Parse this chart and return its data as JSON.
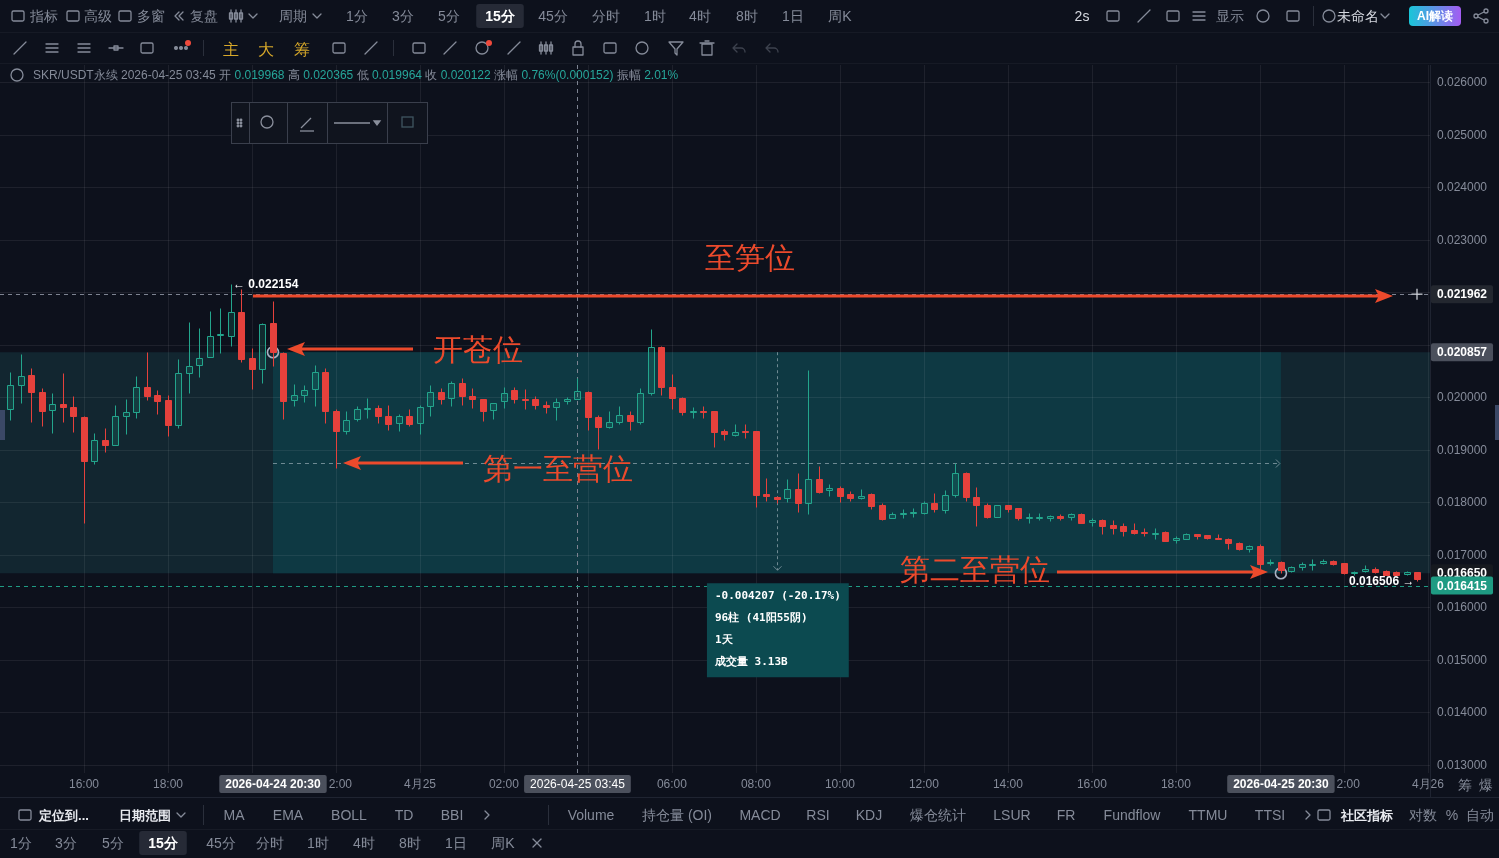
{
  "chart_data": {
    "type": "candlestick",
    "subtitle": "SKR/USDT永续 2026-04-25 03:45 开 0.019968 高 0.020365 低 0.019964 收 0.020122 涨幅 0.76%(0.000152) 振幅 2.01%",
    "x": [
      "2026-04-24T14:15",
      "2026-04-24T14:30",
      "2026-04-24T14:45",
      "2026-04-24T15:00",
      "2026-04-24T15:15",
      "2026-04-24T15:30",
      "2026-04-24T15:45",
      "2026-04-24T16:00",
      "2026-04-24T16:15",
      "2026-04-24T16:30",
      "2026-04-24T16:45",
      "2026-04-24T17:00",
      "2026-04-24T17:15",
      "2026-04-24T17:30",
      "2026-04-24T17:45",
      "2026-04-24T18:00",
      "2026-04-24T18:15",
      "2026-04-24T18:30",
      "2026-04-24T18:45",
      "2026-04-24T19:00",
      "2026-04-24T19:15",
      "2026-04-24T19:30",
      "2026-04-24T19:45",
      "2026-04-24T20:00",
      "2026-04-24T20:15",
      "2026-04-24T20:30",
      "2026-04-24T20:45",
      "2026-04-24T21:00",
      "2026-04-24T21:15",
      "2026-04-24T21:30",
      "2026-04-24T21:45",
      "2026-04-24T22:00",
      "2026-04-24T22:15",
      "2026-04-24T22:30",
      "2026-04-24T22:45",
      "2026-04-24T23:00",
      "2026-04-24T23:15",
      "2026-04-24T23:30",
      "2026-04-24T23:45",
      "2026-04-25T00:00",
      "2026-04-25T00:15",
      "2026-04-25T00:30",
      "2026-04-25T00:45",
      "2026-04-25T01:00",
      "2026-04-25T01:15",
      "2026-04-25T01:30",
      "2026-04-25T01:45",
      "2026-04-25T02:00",
      "2026-04-25T02:15",
      "2026-04-25T02:30",
      "2026-04-25T02:45",
      "2026-04-25T03:00",
      "2026-04-25T03:15",
      "2026-04-25T03:30",
      "2026-04-25T03:45",
      "2026-04-25T04:00",
      "2026-04-25T04:15",
      "2026-04-25T04:30",
      "2026-04-25T04:45",
      "2026-04-25T05:00",
      "2026-04-25T05:15",
      "2026-04-25T05:30",
      "2026-04-25T05:45",
      "2026-04-25T06:00",
      "2026-04-25T06:15",
      "2026-04-25T06:30",
      "2026-04-25T06:45",
      "2026-04-25T07:00",
      "2026-04-25T07:15",
      "2026-04-25T07:30",
      "2026-04-25T07:45",
      "2026-04-25T08:00",
      "2026-04-25T08:15",
      "2026-04-25T08:30",
      "2026-04-25T08:45",
      "2026-04-25T09:00",
      "2026-04-25T09:15",
      "2026-04-25T09:30",
      "2026-04-25T09:45",
      "2026-04-25T10:00",
      "2026-04-25T10:15",
      "2026-04-25T10:30",
      "2026-04-25T10:45",
      "2026-04-25T11:00",
      "2026-04-25T11:15",
      "2026-04-25T11:30",
      "2026-04-25T11:45",
      "2026-04-25T12:00",
      "2026-04-25T12:15",
      "2026-04-25T12:30",
      "2026-04-25T12:45",
      "2026-04-25T13:00",
      "2026-04-25T13:15",
      "2026-04-25T13:30",
      "2026-04-25T13:45",
      "2026-04-25T14:00",
      "2026-04-25T14:15",
      "2026-04-25T14:30",
      "2026-04-25T14:45",
      "2026-04-25T15:00",
      "2026-04-25T15:15",
      "2026-04-25T15:30",
      "2026-04-25T15:45",
      "2026-04-25T16:00",
      "2026-04-25T16:15",
      "2026-04-25T16:30",
      "2026-04-25T16:45",
      "2026-04-25T17:00",
      "2026-04-25T17:15",
      "2026-04-25T17:30",
      "2026-04-25T17:45",
      "2026-04-25T18:00",
      "2026-04-25T18:15",
      "2026-04-25T18:30",
      "2026-04-25T18:45",
      "2026-04-25T19:00",
      "2026-04-25T19:15",
      "2026-04-25T19:30",
      "2026-04-25T19:45",
      "2026-04-25T20:00",
      "2026-04-25T20:15",
      "2026-04-25T20:30",
      "2026-04-25T20:45",
      "2026-04-25T21:00",
      "2026-04-25T21:15",
      "2026-04-25T21:30",
      "2026-04-25T21:45",
      "2026-04-25T22:00",
      "2026-04-25T22:15",
      "2026-04-25T22:30",
      "2026-04-25T22:45",
      "2026-04-25T23:00",
      "2026-04-25T23:15",
      "2026-04-25T23:30",
      "2026-04-25T23:45"
    ],
    "ohlc": [
      [
        0.01977,
        0.02049,
        0.01956,
        0.02023
      ],
      [
        0.02023,
        0.02083,
        0.01989,
        0.0204
      ],
      [
        0.02042,
        0.02055,
        0.01953,
        0.0201
      ],
      [
        0.0201,
        0.02018,
        0.01945,
        0.01973
      ],
      [
        0.01975,
        0.02008,
        0.01932,
        0.01987
      ],
      [
        0.01987,
        0.02046,
        0.01953,
        0.01982
      ],
      [
        0.01982,
        0.02002,
        0.01934,
        0.01964
      ],
      [
        0.01963,
        0.01964,
        0.01761,
        0.01878
      ],
      [
        0.01878,
        0.01932,
        0.01872,
        0.01918
      ],
      [
        0.01919,
        0.01941,
        0.01896,
        0.0191
      ],
      [
        0.0191,
        0.01985,
        0.01909,
        0.01965
      ],
      [
        0.01965,
        0.01997,
        0.01931,
        0.01972
      ],
      [
        0.01972,
        0.02041,
        0.01961,
        0.0202
      ],
      [
        0.0202,
        0.02087,
        0.01994,
        0.02003
      ],
      [
        0.02004,
        0.02013,
        0.01968,
        0.01992
      ],
      [
        0.01994,
        0.02005,
        0.01926,
        0.01948
      ],
      [
        0.01948,
        0.02073,
        0.01942,
        0.02046
      ],
      [
        0.02046,
        0.02144,
        0.02008,
        0.02059
      ],
      [
        0.02061,
        0.02132,
        0.02039,
        0.02074
      ],
      [
        0.02077,
        0.02164,
        0.02076,
        0.02116
      ],
      [
        0.02118,
        0.0217,
        0.02084,
        0.02121
      ],
      [
        0.02117,
        0.022154,
        0.02098,
        0.02162
      ],
      [
        0.02162,
        0.02206,
        0.02068,
        0.02073
      ],
      [
        0.02075,
        0.02094,
        0.02016,
        0.02054
      ],
      [
        0.02054,
        0.02142,
        0.02027,
        0.02139
      ],
      [
        0.02142,
        0.02184,
        0.02059,
        0.020857
      ],
      [
        0.02085,
        0.02086,
        0.01958,
        0.01992
      ],
      [
        0.01994,
        0.02026,
        0.01984,
        0.02004
      ],
      [
        0.02004,
        0.02024,
        0.01991,
        0.02013
      ],
      [
        0.02015,
        0.02061,
        0.01983,
        0.02049
      ],
      [
        0.02049,
        0.02056,
        0.01951,
        0.01973
      ],
      [
        0.01974,
        0.01977,
        0.01866,
        0.01935
      ],
      [
        0.01935,
        0.01973,
        0.01931,
        0.01956
      ],
      [
        0.01958,
        0.01983,
        0.01954,
        0.01978
      ],
      [
        0.01979,
        0.01999,
        0.01961,
        0.0198
      ],
      [
        0.0198,
        0.01986,
        0.01951,
        0.01964
      ],
      [
        0.01965,
        0.01986,
        0.01937,
        0.0195
      ],
      [
        0.01951,
        0.01969,
        0.01935,
        0.01964
      ],
      [
        0.01965,
        0.01977,
        0.01945,
        0.0195
      ],
      [
        0.01951,
        0.01986,
        0.01931,
        0.01982
      ],
      [
        0.01983,
        0.02024,
        0.01965,
        0.0201
      ],
      [
        0.0201,
        0.02018,
        0.01988,
        0.01997
      ],
      [
        0.01998,
        0.0203,
        0.01983,
        0.02027
      ],
      [
        0.02027,
        0.02037,
        0.01986,
        0.02002
      ],
      [
        0.02003,
        0.02018,
        0.0198,
        0.01996
      ],
      [
        0.01996,
        0.01997,
        0.01954,
        0.01973
      ],
      [
        0.01975,
        0.0199,
        0.01959,
        0.01989
      ],
      [
        0.01992,
        0.0202,
        0.0198,
        0.02009
      ],
      [
        0.02013,
        0.0202,
        0.01989,
        0.01997
      ],
      [
        0.01997,
        0.02015,
        0.01978,
        0.01995
      ],
      [
        0.01996,
        0.02002,
        0.01977,
        0.01985
      ],
      [
        0.01985,
        0.01992,
        0.0197,
        0.01982
      ],
      [
        0.01982,
        0.01999,
        0.01956,
        0.01991
      ],
      [
        0.01992,
        0.02,
        0.01987,
        0.01996
      ],
      [
        0.019968,
        0.020365,
        0.019964,
        0.020122
      ],
      [
        0.0201,
        0.02011,
        0.01937,
        0.01963
      ],
      [
        0.01963,
        0.01967,
        0.01901,
        0.01944
      ],
      [
        0.01944,
        0.01973,
        0.01942,
        0.01953
      ],
      [
        0.01953,
        0.01983,
        0.0195,
        0.01967
      ],
      [
        0.01967,
        0.01973,
        0.01937,
        0.01954
      ],
      [
        0.01953,
        0.02018,
        0.0195,
        0.02008
      ],
      [
        0.02008,
        0.0213,
        0.02005,
        0.02096
      ],
      [
        0.02096,
        0.02097,
        0.02005,
        0.02019
      ],
      [
        0.02019,
        0.02045,
        0.01977,
        0.01999
      ],
      [
        0.01999,
        0.02,
        0.01967,
        0.01972
      ],
      [
        0.01972,
        0.01982,
        0.01961,
        0.01973
      ],
      [
        0.01973,
        0.01983,
        0.01961,
        0.01971
      ],
      [
        0.01973,
        0.01974,
        0.01906,
        0.01934
      ],
      [
        0.01935,
        0.01939,
        0.01918,
        0.0193
      ],
      [
        0.01929,
        0.0195,
        0.01927,
        0.01934
      ],
      [
        0.01936,
        0.0195,
        0.01923,
        0.01934
      ],
      [
        0.01935,
        0.01936,
        0.01792,
        0.01814
      ],
      [
        0.01815,
        0.01846,
        0.01803,
        0.01812
      ],
      [
        0.01811,
        0.01812,
        0.01799,
        0.01807
      ],
      [
        0.01809,
        0.01844,
        0.01801,
        0.01826
      ],
      [
        0.01826,
        0.01855,
        0.01782,
        0.01799
      ],
      [
        0.01799,
        0.02051,
        0.01777,
        0.01845
      ],
      [
        0.01845,
        0.01869,
        0.01818,
        0.0182
      ],
      [
        0.01823,
        0.01834,
        0.01812,
        0.01827
      ],
      [
        0.01828,
        0.01832,
        0.01801,
        0.01812
      ],
      [
        0.01815,
        0.01822,
        0.01803,
        0.01808
      ],
      [
        0.01808,
        0.01826,
        0.01806,
        0.01812
      ],
      [
        0.01815,
        0.01818,
        0.01787,
        0.01793
      ],
      [
        0.01794,
        0.01798,
        0.01767,
        0.01768
      ],
      [
        0.01771,
        0.01782,
        0.0177,
        0.01778
      ],
      [
        0.01777,
        0.01788,
        0.01771,
        0.01779
      ],
      [
        0.01779,
        0.01789,
        0.01773,
        0.01781
      ],
      [
        0.0178,
        0.01803,
        0.01777,
        0.01799
      ],
      [
        0.01798,
        0.01817,
        0.01782,
        0.01788
      ],
      [
        0.01786,
        0.01823,
        0.0178,
        0.01814
      ],
      [
        0.01814,
        0.01874,
        0.0181,
        0.01856
      ],
      [
        0.01856,
        0.01857,
        0.01803,
        0.0181
      ],
      [
        0.0181,
        0.0183,
        0.01754,
        0.01794
      ],
      [
        0.01794,
        0.01798,
        0.01771,
        0.01773
      ],
      [
        0.01773,
        0.01795,
        0.01772,
        0.01794
      ],
      [
        0.01794,
        0.01795,
        0.01782,
        0.01788
      ],
      [
        0.01789,
        0.0179,
        0.01766,
        0.0177
      ],
      [
        0.01771,
        0.01779,
        0.01761,
        0.01772
      ],
      [
        0.01771,
        0.01779,
        0.01766,
        0.01772
      ],
      [
        0.0177,
        0.01776,
        0.01765,
        0.01774
      ],
      [
        0.01774,
        0.01777,
        0.01767,
        0.0177
      ],
      [
        0.01772,
        0.0178,
        0.01767,
        0.01778
      ],
      [
        0.01777,
        0.0178,
        0.0176,
        0.01761
      ],
      [
        0.01763,
        0.01771,
        0.01755,
        0.01766
      ],
      [
        0.01766,
        0.01769,
        0.0174,
        0.01754
      ],
      [
        0.01757,
        0.01766,
        0.0174,
        0.01752
      ],
      [
        0.01755,
        0.0176,
        0.01736,
        0.01746
      ],
      [
        0.01747,
        0.0176,
        0.0174,
        0.01742
      ],
      [
        0.01743,
        0.01751,
        0.01736,
        0.01742
      ],
      [
        0.0174,
        0.01751,
        0.01731,
        0.01742
      ],
      [
        0.01743,
        0.01745,
        0.01726,
        0.01727
      ],
      [
        0.01728,
        0.01735,
        0.01723,
        0.01733
      ],
      [
        0.01731,
        0.01742,
        0.0173,
        0.0174
      ],
      [
        0.01739,
        0.0174,
        0.0173,
        0.01735
      ],
      [
        0.01737,
        0.01738,
        0.01731,
        0.01732
      ],
      [
        0.01732,
        0.0174,
        0.0173,
        0.01731
      ],
      [
        0.0173,
        0.01733,
        0.01712,
        0.01722
      ],
      [
        0.01723,
        0.01724,
        0.01709,
        0.01711
      ],
      [
        0.01712,
        0.01719,
        0.01706,
        0.01717
      ],
      [
        0.01717,
        0.0172,
        0.01671,
        0.01683
      ],
      [
        0.01686,
        0.01693,
        0.01681,
        0.01687
      ],
      [
        0.01687,
        0.01688,
        0.01665,
        0.01672
      ],
      [
        0.01669,
        0.01678,
        0.01668,
        0.01676
      ],
      [
        0.01676,
        0.01687,
        0.01672,
        0.01683
      ],
      [
        0.01682,
        0.01692,
        0.01672,
        0.01683
      ],
      [
        0.01684,
        0.01692,
        0.01683,
        0.01689
      ],
      [
        0.01689,
        0.0169,
        0.01681,
        0.01683
      ],
      [
        0.01684,
        0.01685,
        0.01664,
        0.01665
      ],
      [
        0.01665,
        0.01669,
        0.01662,
        0.01667
      ],
      [
        0.01669,
        0.01681,
        0.01668,
        0.01674
      ],
      [
        0.01674,
        0.01676,
        0.01666,
        0.01668
      ],
      [
        0.0167,
        0.01671,
        0.01661,
        0.01662
      ],
      [
        0.01667,
        0.01669,
        0.01659,
        0.01662
      ],
      [
        0.01663,
        0.0167,
        0.01661,
        0.01667
      ],
      [
        0.01667,
        0.01668,
        0.016506,
        0.01655
      ]
    ],
    "series": [
      {
        "type": "line",
        "x": [
          "2026-04-24T20:30",
          "2026-04-25T20:30"
        ],
        "values": [
          0.01875,
          0.01875
        ],
        "color": "#6f8a93",
        "line_style": "dashed"
      }
    ],
    "xlim": [
      "2026-04-24T14:00",
      "2026-04-26T00:03"
    ],
    "ylim": [
      0.012848,
      0.026324
    ],
    "xticks": [
      {
        "value": "2026-04-24T16:00",
        "label": "16:00"
      },
      {
        "value": "2026-04-24T18:00",
        "label": "18:00"
      },
      {
        "value": "2026-04-24T20:00",
        "label": null
      },
      {
        "value": "2026-04-24T20:30",
        "label": "2026-04-24 20:30"
      },
      {
        "value": "2026-04-24T22:00",
        "label": "2:00"
      },
      {
        "value": "2026-04-25T00:00",
        "label": "4月25"
      },
      {
        "value": "2026-04-25T02:00",
        "label": "02:00"
      },
      {
        "value": "2026-04-25T04:00",
        "label": null
      },
      {
        "value": "2026-04-25T06:00",
        "label": "06:00"
      },
      {
        "value": "2026-04-25T08:00",
        "label": "08:00"
      },
      {
        "value": "2026-04-25T10:00",
        "label": "10:00"
      },
      {
        "value": "2026-04-25T12:00",
        "label": "12:00"
      },
      {
        "value": "2026-04-25T14:00",
        "label": "14:00"
      },
      {
        "value": "2026-04-25T16:00",
        "label": "16:00"
      },
      {
        "value": "2026-04-25T18:00",
        "label": "18:00"
      },
      {
        "value": "2026-04-25T20:00",
        "label": null
      },
      {
        "value": "2026-04-25T20:30",
        "label": "2026-04-25 20:30"
      },
      {
        "value": "2026-04-25T22:00",
        "label": "2:00"
      },
      {
        "value": "2026-04-26T00:00",
        "label": "4月26"
      }
    ],
    "yticks": [
      {
        "value": 0.026,
        "label": "0.026000"
      },
      {
        "value": 0.025,
        "label": "0.025000"
      },
      {
        "value": 0.024,
        "label": "0.024000"
      },
      {
        "value": 0.023,
        "label": "0.023000"
      },
      {
        "value": 0.022,
        "label": null
      },
      {
        "value": 0.021,
        "label": null
      },
      {
        "value": 0.02,
        "label": "0.020000"
      },
      {
        "value": 0.019,
        "label": "0.019000"
      },
      {
        "value": 0.018,
        "label": "0.018000"
      },
      {
        "value": 0.017,
        "label": "0.017000"
      },
      {
        "value": 0.016,
        "label": "0.016000"
      },
      {
        "value": 0.015,
        "label": "0.015000"
      },
      {
        "value": 0.014,
        "label": "0.014000"
      },
      {
        "value": 0.013,
        "label": "0.013000"
      },
      0.020857,
      {
        "value": 0.01665,
        "label": "0.016650"
      }
    ],
    "grid": true,
    "ref_lines": [
      {
        "axis": "x",
        "value": "2026-04-25T03:45",
        "label": "2026-04-25 03:45",
        "line_style": "dashed",
        "color": "#7d8391"
      },
      {
        "axis": "y",
        "value": 0.021962,
        "label": "0.021962",
        "line_style": "dashed",
        "color": "#7d8391"
      },
      {
        "axis": "y",
        "value": 0.016415,
        "label": "0.016415",
        "line_style": "dashed",
        "color": "#1f9b83"
      }
    ],
    "bands": [
      {
        "axis": "x",
        "from": "2026-04-24T20:30",
        "to": "2026-04-25T20:30",
        "color": "#0e3943"
      },
      {
        "axis": "y",
        "from": 0.01665,
        "to": 0.020857,
        "color": "#122630"
      }
    ],
    "annotations": [
      {
        "text": "← 0.022154",
        "x": "2026-04-24T19:30",
        "y": 0.022154
      },
      {
        "text": "0.016506 →",
        "x": "2026-04-25T23:45",
        "y": 0.016506
      },
      "至笋位",
      "开苍位",
      "第一至营位",
      "第二至营位",
      "-0.004207 (-20.17%)",
      "96柱 (41阳55阴)",
      "1天",
      "成交量 3.13B",
      "指标",
      "高级",
      "多窗",
      "复盘",
      "周期",
      "1分",
      "3分",
      "5分",
      "15分",
      "45分",
      "分时",
      "1时",
      "4时",
      "8时",
      "1日",
      "周K",
      "2s",
      "显示",
      "未命名",
      "AI解读",
      "主",
      "大",
      "筹",
      "筹",
      "爆",
      "定位到...",
      "日期范围",
      "MA",
      "EMA",
      "BOLL",
      "TD",
      "BBI",
      "Volume",
      "持仓量 (OI)",
      "MACD",
      "RSI",
      "KDJ",
      "爆仓统计",
      "LSUR",
      "FR",
      "Fundflow",
      "TTMU",
      "TTSI",
      "社区指标",
      "对数",
      "%",
      "自动",
      "1分",
      "3分",
      "5分",
      "15分",
      "45分",
      "分时",
      "1时",
      "4时",
      "8时",
      "1日",
      "周K"
    ]
  }
}
